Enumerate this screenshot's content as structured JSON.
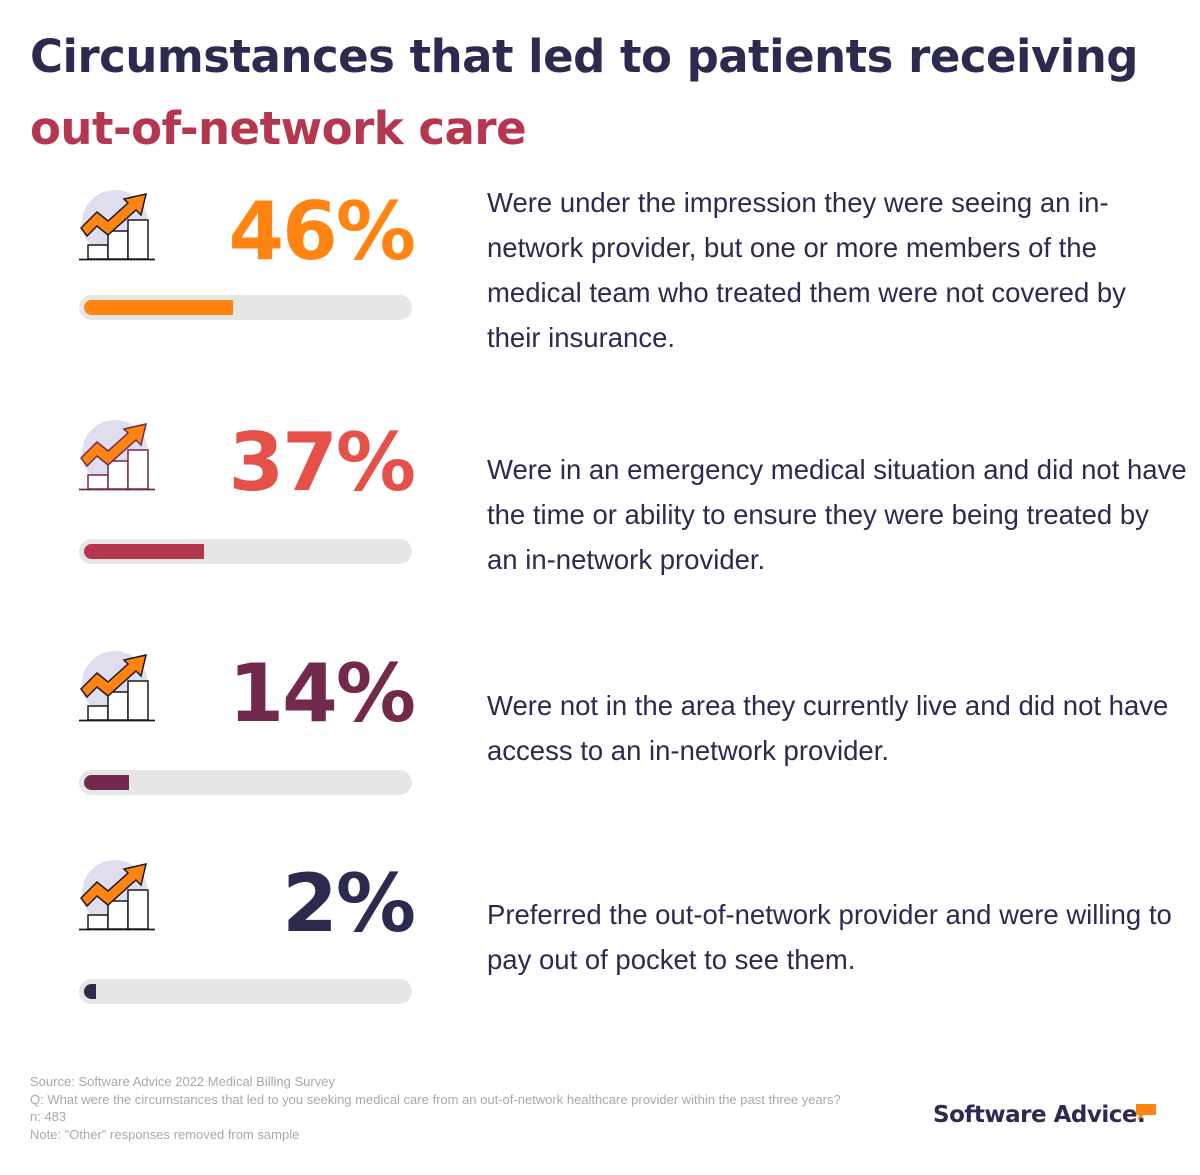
{
  "title": {
    "line1": "Circumstances that led to patients receiving",
    "line2": "out-of-network care"
  },
  "colors": {
    "title_dark": "#2d2a4f",
    "title_accent": "#b5364f",
    "track": "#e6e6e6",
    "icon_arrow": "#ff8412",
    "icon_circle": "#e0ddef"
  },
  "items": [
    {
      "percent_label": "46%",
      "value": 46,
      "pct_color": "#ff8412",
      "bar_color": "#ff8412",
      "icon_outline": "#1a1a1a",
      "description": "Were under the impression they were seeing an in-network provider, but one or more members of the medical team who treated them were not covered by their insurance."
    },
    {
      "percent_label": "37%",
      "value": 37,
      "pct_color": "#e55049",
      "bar_color": "#b5364f",
      "icon_outline": "#72294c",
      "description": "Were in an emergency medical situation and did not have the time or ability to ensure they were being treated by an in-network provider."
    },
    {
      "percent_label": "14%",
      "value": 14,
      "pct_color": "#72294c",
      "bar_color": "#72294c",
      "icon_outline": "#1a1a1a",
      "description": "Were not in the area they currently live and did not have access to an in-network provider."
    },
    {
      "percent_label": "2%",
      "value": 2,
      "pct_color": "#2d2a4f",
      "bar_color": "#2d2a4f",
      "icon_outline": "#1a1a1a",
      "description": "Preferred the out-of-network provider and were willing to pay out of pocket to see them."
    }
  ],
  "footnote": {
    "source": "Source: Software Advice 2022 Medical Billing Survey",
    "question": "Q: What were the circumstances that led to you seeking medical care from an out-of-network healthcare provider within the past three years?",
    "n": "n: 483",
    "note": "Note: \"Other\" responses removed from sample"
  },
  "logo": {
    "text": "Software Advice",
    "mark": ".",
    "bubble_color": "#ff8412"
  }
}
